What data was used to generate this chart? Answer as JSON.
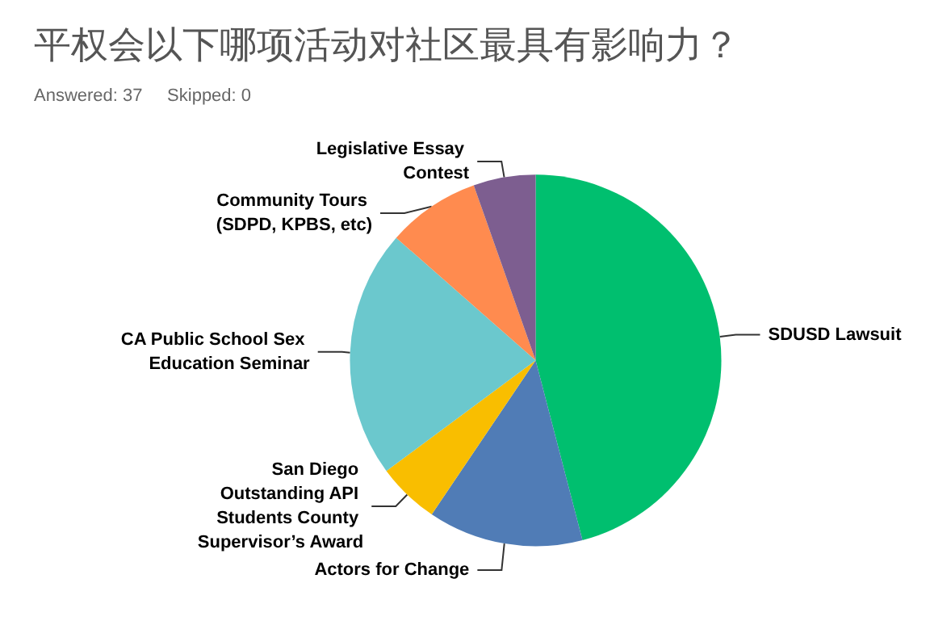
{
  "chart_data": {
    "type": "pie",
    "title": "平权会以下哪项活动对社区最具有影响力？",
    "subtitle": "Answered: 37     Skipped: 0",
    "categories": [
      "SDUSD Lawsuit",
      "Actors for Change",
      "San Diego Outstanding API Students County Supervisor’s Award",
      "CA Public School Sex Education Seminar",
      "Community Tours (SDPD, KPBS, etc)",
      "Legislative Essay Contest"
    ],
    "values": [
      45.94,
      13.51,
      5.41,
      21.62,
      8.11,
      5.41
    ],
    "colors": [
      "#00bf6f",
      "#507cb6",
      "#f9be00",
      "#6bc8cd",
      "#ff8b4f",
      "#7d5e90"
    ],
    "legend": false
  }
}
